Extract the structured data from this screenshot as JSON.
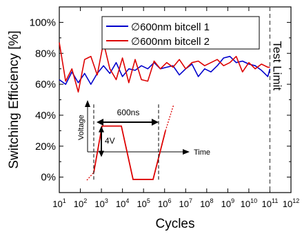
{
  "chart_data": {
    "type": "line",
    "xlabel": "Cycles",
    "ylabel": "Switching Efficiency [%]",
    "xscale": "log",
    "xlim": [
      1,
      12
    ],
    "ylim": [
      -10,
      110
    ],
    "grid": false,
    "legend_position": "top-center",
    "x_ticks": [
      {
        "base": "10",
        "exp": "1"
      },
      {
        "base": "10",
        "exp": "2"
      },
      {
        "base": "10",
        "exp": "3"
      },
      {
        "base": "10",
        "exp": "4"
      },
      {
        "base": "10",
        "exp": "5"
      },
      {
        "base": "10",
        "exp": "6"
      },
      {
        "base": "10",
        "exp": "7"
      },
      {
        "base": "10",
        "exp": "8"
      },
      {
        "base": "10",
        "exp": "9"
      },
      {
        "base": "10",
        "exp": "10"
      },
      {
        "base": "10",
        "exp": "11"
      },
      {
        "base": "10",
        "exp": "12"
      }
    ],
    "y_ticks": [
      {
        "value": 0,
        "label": "0%"
      },
      {
        "value": 20,
        "label": "20%"
      },
      {
        "value": 40,
        "label": "40%"
      },
      {
        "value": 60,
        "label": "60%"
      },
      {
        "value": 80,
        "label": "80%"
      },
      {
        "value": 100,
        "label": "100%"
      }
    ],
    "series": [
      {
        "name": "∅600nm bitcell 1",
        "color": "#0000cc",
        "x": [
          1.0,
          1.3,
          1.6,
          1.9,
          2.2,
          2.5,
          2.8,
          3.1,
          3.4,
          3.7,
          4.0,
          4.3,
          4.6,
          4.9,
          5.2,
          5.5,
          5.8,
          6.1,
          6.4,
          6.7,
          7.0,
          7.3,
          7.6,
          7.9,
          8.2,
          8.5,
          8.8,
          9.1,
          9.4,
          9.7,
          10.0,
          10.3,
          10.6,
          10.9,
          11.0
        ],
        "y": [
          63,
          60,
          68,
          61,
          67,
          60,
          67,
          72,
          67,
          74,
          65,
          70,
          69,
          72,
          70,
          74,
          70,
          71,
          72,
          66,
          70,
          73,
          65,
          70,
          68,
          72,
          77,
          78,
          74,
          75,
          73,
          72,
          69,
          65,
          70
        ]
      },
      {
        "name": "∅600nm bitcell 2",
        "color": "#dd0000",
        "x": [
          1.0,
          1.3,
          1.6,
          1.9,
          2.2,
          2.5,
          2.8,
          3.1,
          3.4,
          3.7,
          4.0,
          4.3,
          4.6,
          4.9,
          5.2,
          5.5,
          5.8,
          6.1,
          6.4,
          6.7,
          7.0,
          7.3,
          7.6,
          7.9,
          8.2,
          8.5,
          8.8,
          9.1,
          9.4,
          9.7,
          10.0,
          10.3,
          10.6,
          10.9,
          11.0
        ],
        "y": [
          87,
          62,
          70,
          55,
          76,
          78,
          66,
          87,
          70,
          63,
          77,
          61,
          76,
          63,
          62,
          75,
          70,
          74,
          71,
          76,
          70,
          74,
          75,
          72,
          74,
          76,
          72,
          74,
          78,
          68,
          74,
          70,
          73,
          71,
          71
        ]
      }
    ],
    "annotations": {
      "test_limit_x": 11,
      "test_limit_text": "Test Limit"
    },
    "inset": {
      "ylabel": "Voltage",
      "xlabel": "Time",
      "width_label": "600ns",
      "height_label": "4V"
    }
  }
}
